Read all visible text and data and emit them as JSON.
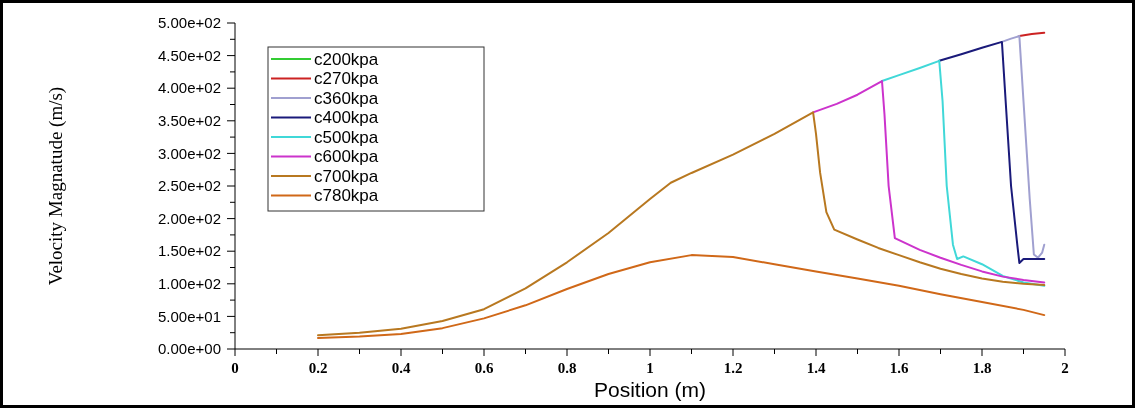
{
  "chart_data": {
    "type": "line",
    "xlabel": "Position (m)",
    "ylabel": "Velocity Magnatude (m/s)",
    "xlim": [
      0,
      2
    ],
    "ylim": [
      0,
      500
    ],
    "xticks": [
      0,
      {
        "value": 0.1,
        "label": null
      },
      0.2,
      {
        "value": 0.3,
        "label": null
      },
      0.4,
      {
        "value": 0.5,
        "label": null
      },
      0.6,
      {
        "value": 0.7,
        "label": null
      },
      0.8,
      {
        "value": 0.9,
        "label": null
      },
      1,
      {
        "value": 1.1,
        "label": null
      },
      1.2,
      {
        "value": 1.3,
        "label": null
      },
      1.4,
      {
        "value": 1.5,
        "label": null
      },
      1.6,
      {
        "value": 1.7,
        "label": null
      },
      1.8,
      {
        "value": 1.9,
        "label": null
      },
      2
    ],
    "yticks": [
      {
        "value": 0,
        "label": "0.00e+00"
      },
      {
        "value": 25,
        "label": null
      },
      {
        "value": 50,
        "label": "5.00e+01"
      },
      {
        "value": 75,
        "label": null
      },
      {
        "value": 100,
        "label": "1.00e+02"
      },
      {
        "value": 125,
        "label": null
      },
      {
        "value": 150,
        "label": "1.50e+02"
      },
      {
        "value": 175,
        "label": null
      },
      {
        "value": 200,
        "label": "2.00e+02"
      },
      {
        "value": 225,
        "label": null
      },
      {
        "value": 250,
        "label": "2.50e+02"
      },
      {
        "value": 275,
        "label": null
      },
      {
        "value": 300,
        "label": "3.00e+02"
      },
      {
        "value": 325,
        "label": null
      },
      {
        "value": 350,
        "label": "3.50e+02"
      },
      {
        "value": 375,
        "label": null
      },
      {
        "value": 400,
        "label": "4.00e+02"
      },
      {
        "value": 425,
        "label": null
      },
      {
        "value": 450,
        "label": "4.50e+02"
      },
      {
        "value": 475,
        "label": null
      },
      {
        "value": 500,
        "label": "5.00e+02"
      }
    ],
    "grid": false,
    "legend": "top left",
    "marker": "none",
    "line_style": "solid",
    "series": [
      {
        "name": "c200kpa",
        "color": "#33cc33"
      },
      {
        "name": "c270kpa",
        "color": "#cc2222",
        "x": [
          1.89,
          1.92,
          1.95
        ],
        "values": [
          480,
          483,
          485
        ]
      },
      {
        "name": "c360kpa",
        "color": "#a0a0d0",
        "x": [
          1.848,
          1.87,
          1.89,
          1.9,
          1.915,
          1.925,
          1.935,
          1.945,
          1.95
        ],
        "values": [
          471,
          476,
          480,
          380,
          230,
          145,
          140,
          148,
          160
        ]
      },
      {
        "name": "c400kpa",
        "color": "#1a1a7a",
        "x": [
          1.697,
          1.75,
          1.8,
          1.848,
          1.857,
          1.87,
          1.885,
          1.89,
          1.9,
          1.95
        ],
        "values": [
          442,
          452,
          462,
          471,
          380,
          250,
          160,
          132,
          138,
          138
        ]
      },
      {
        "name": "c500kpa",
        "color": "#40d8d8",
        "x": [
          1.559,
          1.6,
          1.65,
          1.697,
          1.705,
          1.715,
          1.73,
          1.74,
          1.755,
          1.8,
          1.85,
          1.9,
          1.95
        ],
        "values": [
          411,
          420,
          431,
          442,
          380,
          250,
          160,
          138,
          142,
          130,
          112,
          102,
          97
        ]
      },
      {
        "name": "c600kpa",
        "color": "#cc33cc",
        "x": [
          1.393,
          1.45,
          1.5,
          1.559,
          1.565,
          1.575,
          1.59,
          1.65,
          1.7,
          1.75,
          1.8,
          1.85,
          1.9,
          1.95
        ],
        "values": [
          363,
          376,
          390,
          411,
          360,
          250,
          170,
          152,
          140,
          129,
          119,
          111,
          106,
          102
        ]
      },
      {
        "name": "c700kpa",
        "color": "#b87820",
        "x": [
          0.2,
          0.3,
          0.4,
          0.5,
          0.6,
          0.7,
          0.8,
          0.9,
          1.0,
          1.05,
          1.1,
          1.2,
          1.3,
          1.393,
          1.4,
          1.41,
          1.425,
          1.444,
          1.5,
          1.55,
          1.6,
          1.65,
          1.7,
          1.75,
          1.8,
          1.85,
          1.9,
          1.95
        ],
        "values": [
          21,
          25,
          31,
          43,
          61,
          93,
          133,
          178,
          230,
          255,
          270,
          298,
          330,
          363,
          330,
          270,
          210,
          183,
          168,
          155,
          144,
          133,
          123,
          115,
          108,
          103,
          100,
          98
        ]
      },
      {
        "name": "c780kpa",
        "color": "#d06818",
        "x": [
          0.2,
          0.3,
          0.4,
          0.5,
          0.6,
          0.7,
          0.8,
          0.9,
          1.0,
          1.1,
          1.2,
          1.3,
          1.4,
          1.5,
          1.6,
          1.7,
          1.8,
          1.9,
          1.95
        ],
        "values": [
          17,
          19,
          23,
          32,
          47,
          67,
          92,
          115,
          133,
          144,
          141,
          130,
          119,
          108,
          97,
          84,
          72,
          60,
          52
        ]
      }
    ]
  }
}
